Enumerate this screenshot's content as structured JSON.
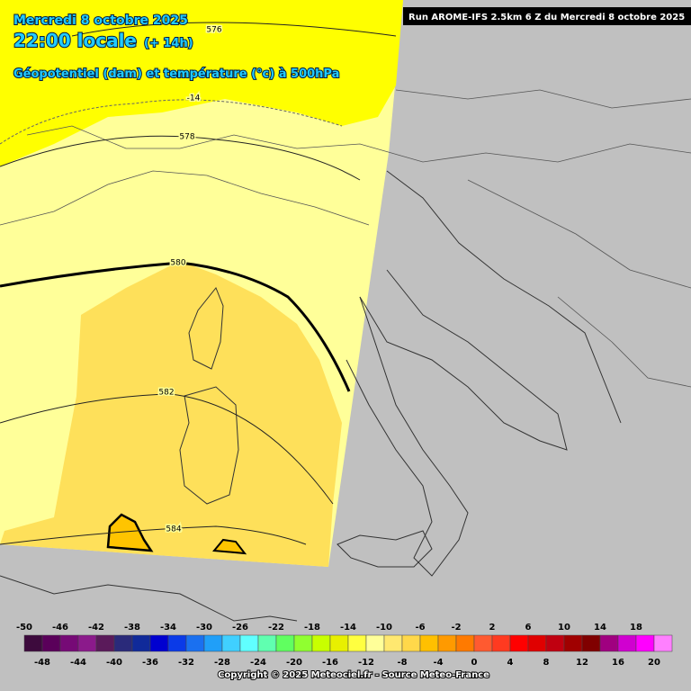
{
  "header": {
    "date": "Mercredi 8 octobre 2025",
    "time": "22:00 locale",
    "lead": "(+ 14h)",
    "parameter": "Géopotentiel (dam) et température (°c) à 500hPa",
    "run": "Run AROME-IFS 2.5km 6 Z du Mercredi 8 octobre 2025"
  },
  "contour_labels": [
    "576",
    "578",
    "580",
    "582",
    "584",
    "-14"
  ],
  "colorbar": {
    "labels": [
      -50,
      -48,
      -46,
      -44,
      -42,
      -40,
      -38,
      -36,
      -34,
      -32,
      -30,
      -28,
      -26,
      -24,
      -22,
      -20,
      -18,
      -16,
      -14,
      -12,
      -10,
      -8,
      -6,
      -4,
      -2,
      0,
      2,
      4,
      6,
      8,
      10,
      12,
      14,
      16,
      18,
      20
    ],
    "colors": [
      "#3d0a3d",
      "#5a005a",
      "#760a76",
      "#8b1a8b",
      "#5a1a5a",
      "#2a2a7a",
      "#102a9a",
      "#0000d0",
      "#0a3ae8",
      "#1a70f0",
      "#209ff8",
      "#40d0ff",
      "#60ffff",
      "#60ffb0",
      "#60ff60",
      "#90ff30",
      "#c8ff00",
      "#e8f000",
      "#ffff40",
      "#ffff99",
      "#ffe870",
      "#ffd84a",
      "#ffc000",
      "#ff9a00",
      "#ff7a00",
      "#ff5a30",
      "#ff3a20",
      "#ff0000",
      "#e00000",
      "#c00010",
      "#a00000",
      "#800000",
      "#a00080",
      "#d000d0",
      "#ff00ff",
      "#ff80ff"
    ]
  },
  "footer": {
    "copyright": "Copyright © 2025 Meteociel.fr - Source Meteo-France"
  }
}
